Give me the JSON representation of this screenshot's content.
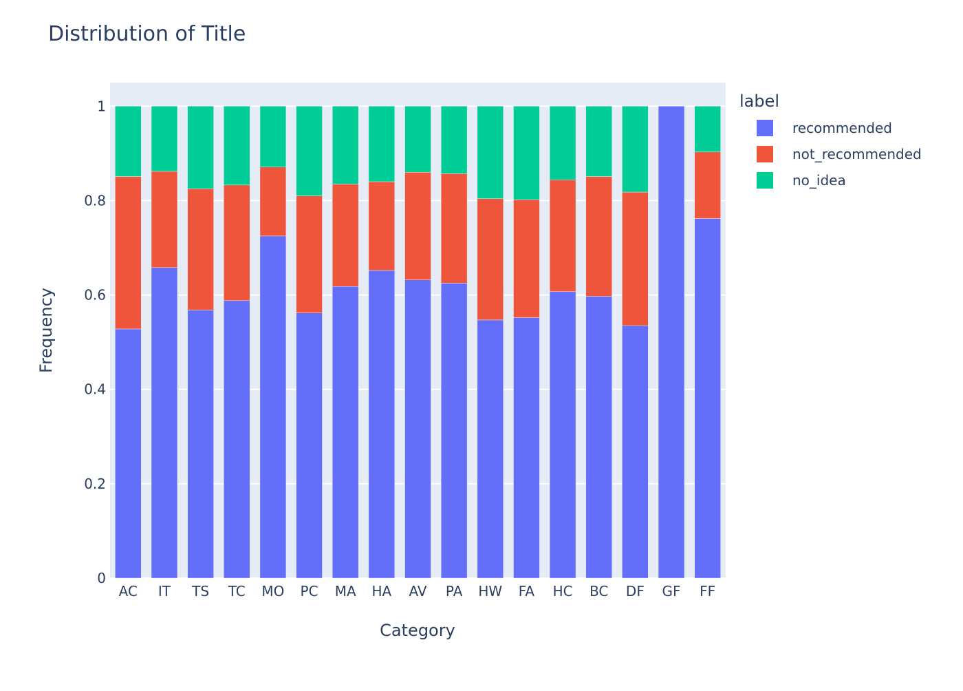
{
  "chart_data": {
    "type": "bar",
    "barmode": "stack",
    "title": "Distribution of Title",
    "xlabel": "Category",
    "ylabel": "Frequency",
    "ylim": [
      0,
      1.05
    ],
    "yticks": [
      0,
      0.2,
      0.4,
      0.6,
      0.8,
      1
    ],
    "ytick_labels": [
      "0",
      "0.2",
      "0.4",
      "0.6",
      "0.8",
      "1"
    ],
    "grid": true,
    "legend_title": "label",
    "legend_position": "right",
    "categories": [
      "AC",
      "IT",
      "TS",
      "TC",
      "MO",
      "PC",
      "MA",
      "HA",
      "AV",
      "PA",
      "HW",
      "FA",
      "HC",
      "BC",
      "DF",
      "GF",
      "FF"
    ],
    "series": [
      {
        "name": "recommended",
        "color": "#636efa",
        "values": [
          0.528,
          0.658,
          0.568,
          0.588,
          0.725,
          0.562,
          0.618,
          0.652,
          0.632,
          0.625,
          0.547,
          0.552,
          0.607,
          0.597,
          0.535,
          1.0,
          0.762
        ]
      },
      {
        "name": "not_recommended",
        "color": "#ef553b",
        "values": [
          0.323,
          0.204,
          0.257,
          0.245,
          0.146,
          0.248,
          0.217,
          0.188,
          0.228,
          0.232,
          0.257,
          0.25,
          0.237,
          0.254,
          0.283,
          0.0,
          0.141
        ]
      },
      {
        "name": "no_idea",
        "color": "#00cc96",
        "values": [
          0.149,
          0.138,
          0.175,
          0.167,
          0.129,
          0.19,
          0.165,
          0.16,
          0.14,
          0.143,
          0.196,
          0.198,
          0.156,
          0.149,
          0.182,
          0.0,
          0.097
        ]
      }
    ]
  }
}
